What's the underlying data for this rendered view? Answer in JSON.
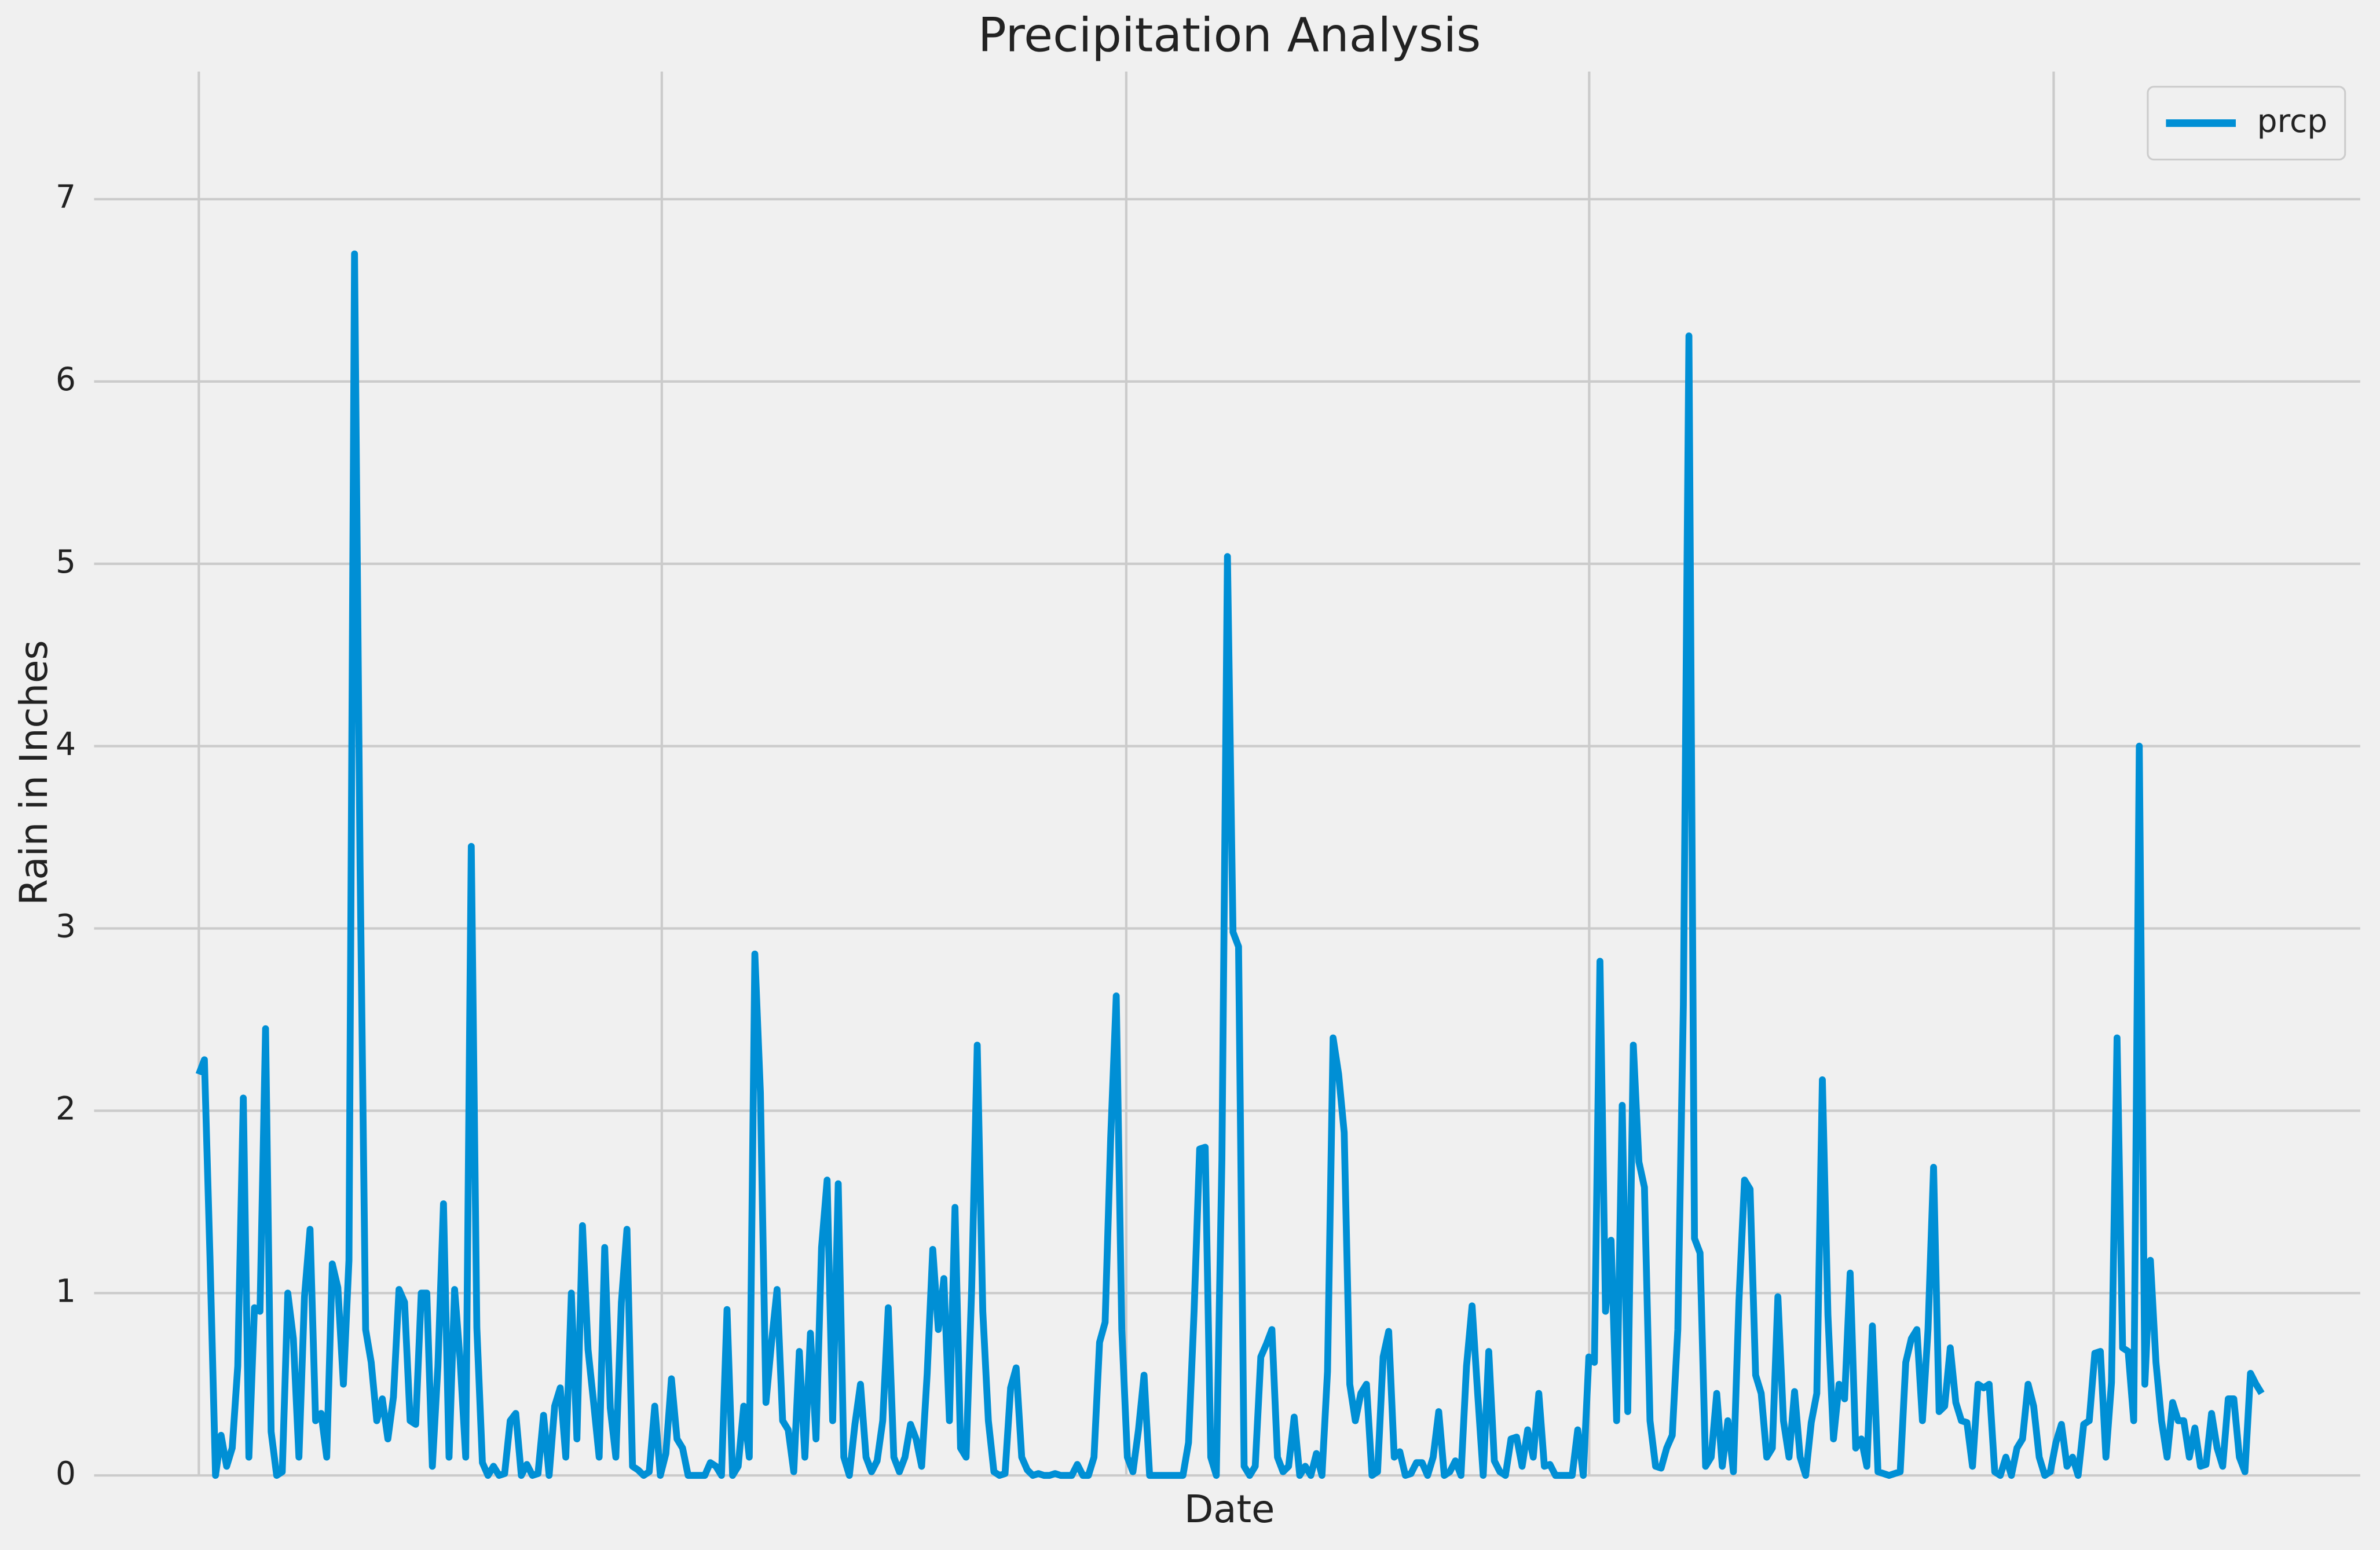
{
  "chart_data": {
    "type": "line",
    "title": "Precipitation Analysis",
    "x_label": "Date",
    "y_label": "Rain in Inches",
    "ylim": [
      0,
      7.7
    ],
    "yticks": [
      0,
      1,
      2,
      3,
      4,
      5,
      6,
      7
    ],
    "grid": true,
    "legend": "upper right",
    "series": [
      {
        "name": "prcp",
        "color": "#008fd5",
        "values": [
          2.2,
          2.28,
          1.2,
          0,
          0.22,
          0.05,
          0.15,
          0.6,
          2.07,
          0.1,
          0.92,
          0.9,
          2.45,
          0.24,
          0,
          0.02,
          1.0,
          0.75,
          0.1,
          0.98,
          1.35,
          0.3,
          0.34,
          0.1,
          1.16,
          1.03,
          0.5,
          1.18,
          6.7,
          3.34,
          0.8,
          0.62,
          0.3,
          0.42,
          0.2,
          0.43,
          1.02,
          0.95,
          0.3,
          0.28,
          1.0,
          1.0,
          0.05,
          0.6,
          1.49,
          0.1,
          1.02,
          0.63,
          0.1,
          3.45,
          0.81,
          0.07,
          0,
          0.05,
          0,
          0.01,
          0.3,
          0.34,
          0,
          0.06,
          0,
          0.01,
          0.33,
          0,
          0.38,
          0.48,
          0.1,
          1.0,
          0.2,
          1.37,
          0.69,
          0.4,
          0.1,
          1.25,
          0.37,
          0.1,
          0.95,
          1.35,
          0.05,
          0.03,
          0,
          0.02,
          0.38,
          0,
          0.12,
          0.53,
          0.2,
          0.15,
          0,
          0,
          0,
          0,
          0.07,
          0.05,
          0,
          0.91,
          0,
          0.05,
          0.38,
          0.1,
          2.86,
          2.1,
          0.4,
          0.73,
          1.02,
          0.3,
          0.25,
          0.02,
          0.68,
          0.1,
          0.78,
          0.2,
          1.25,
          1.62,
          0.3,
          1.6,
          0.1,
          0,
          0.28,
          0.5,
          0.1,
          0.02,
          0.08,
          0.3,
          0.92,
          0.1,
          0.02,
          0.1,
          0.28,
          0.2,
          0.05,
          0.56,
          1.24,
          0.8,
          1.08,
          0.3,
          1.47,
          0.15,
          0.1,
          1.03,
          2.36,
          0.9,
          0.3,
          0.02,
          0,
          0.01,
          0.48,
          0.59,
          0.1,
          0.03,
          0,
          0.01,
          0,
          0,
          0.01,
          0,
          0,
          0,
          0.06,
          0,
          0,
          0.1,
          0.73,
          0.84,
          1.85,
          2.63,
          0.8,
          0.1,
          0.02,
          0.25,
          0.55,
          0,
          0,
          0,
          0,
          0,
          0,
          0,
          0.18,
          0.9,
          1.79,
          1.8,
          0.1,
          0,
          1.73,
          5.04,
          2.98,
          2.9,
          0.05,
          0,
          0.05,
          0.65,
          0.72,
          0.8,
          0.1,
          0.02,
          0.05,
          0.32,
          0,
          0.05,
          0,
          0.12,
          0,
          0.57,
          2.4,
          2.2,
          1.88,
          0.5,
          0.3,
          0.45,
          0.5,
          0,
          0.02,
          0.65,
          0.79,
          0.1,
          0.13,
          0,
          0.01,
          0.07,
          0.07,
          0,
          0.1,
          0.35,
          0,
          0.02,
          0.08,
          0,
          0.6,
          0.93,
          0.45,
          0,
          0.68,
          0.08,
          0.02,
          0,
          0.2,
          0.21,
          0.05,
          0.25,
          0.1,
          0.45,
          0.05,
          0.06,
          0,
          0,
          0,
          0,
          0.25,
          0,
          0.65,
          0.62,
          2.82,
          0.9,
          1.29,
          0.3,
          2.03,
          0.35,
          2.36,
          1.72,
          1.58,
          0.3,
          0.05,
          0.04,
          0.15,
          0.22,
          0.8,
          2.58,
          6.25,
          1.3,
          1.22,
          0.05,
          0.1,
          0.45,
          0.05,
          0.3,
          0.02,
          0.96,
          1.62,
          1.57,
          0.55,
          0.45,
          0.1,
          0.15,
          0.98,
          0.3,
          0.1,
          0.46,
          0.1,
          0,
          0.29,
          0.45,
          2.17,
          0.88,
          0.2,
          0.5,
          0.42,
          1.11,
          0.15,
          0.2,
          0.05,
          0.82,
          0.02,
          0.01,
          0,
          0.01,
          0.02,
          0.62,
          0.75,
          0.8,
          0.3,
          0.8,
          1.69,
          0.35,
          0.38,
          0.7,
          0.4,
          0.3,
          0.29,
          0.05,
          0.5,
          0.48,
          0.5,
          0.02,
          0,
          0.1,
          0,
          0.15,
          0.2,
          0.5,
          0.38,
          0.1,
          0,
          0.02,
          0.18,
          0.28,
          0.05,
          0.1,
          0,
          0.28,
          0.3,
          0.67,
          0.68,
          0.1,
          0.51,
          2.4,
          0.7,
          0.68,
          0.3,
          4.0,
          0.5,
          1.18,
          0.62,
          0.3,
          0.1,
          0.4,
          0.3,
          0.3,
          0.1,
          0.26,
          0.05,
          0.06,
          0.34,
          0.15,
          0.05,
          0.42,
          0.42,
          0.1,
          0.02,
          0.56,
          0.5,
          0.45
        ]
      }
    ]
  }
}
